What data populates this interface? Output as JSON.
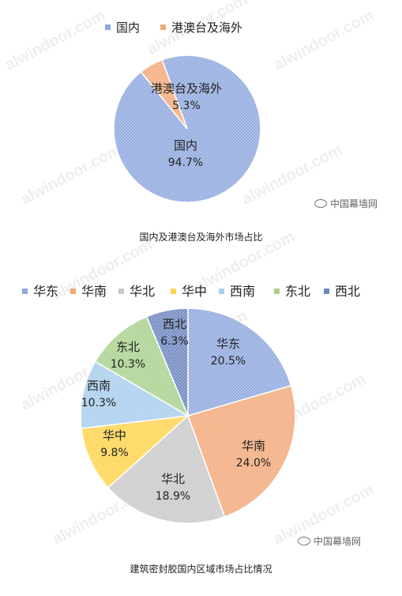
{
  "watermark": "alwindoor.com",
  "brand": "中国幕墙网",
  "chart_data": [
    {
      "type": "pie",
      "title": "国内及港澳台及海外市场占比",
      "legend_position": "top",
      "categories": [
        "国内",
        "港澳台及海外"
      ],
      "values": [
        94.7,
        5.3
      ],
      "value_labels": [
        "94.7%",
        "5.3%"
      ],
      "colors": [
        "#8fa8de",
        "#f2a97a"
      ]
    },
    {
      "type": "pie",
      "title": "建筑密封胶国内区域市场占比情况",
      "legend_position": "top",
      "categories": [
        "华东",
        "华南",
        "华北",
        "华中",
        "西南",
        "东北",
        "西北"
      ],
      "values": [
        20.5,
        24.0,
        18.9,
        9.8,
        10.3,
        10.3,
        6.3
      ],
      "value_labels": [
        "20.5%",
        "24.0%",
        "18.9%",
        "9.8%",
        "10.3%",
        "10.3%",
        "6.3%"
      ],
      "colors": [
        "#8fa8de",
        "#f2a97a",
        "#c9c9c9",
        "#ffd34d",
        "#a8cdec",
        "#a9d18e",
        "#6e87c0"
      ]
    }
  ]
}
